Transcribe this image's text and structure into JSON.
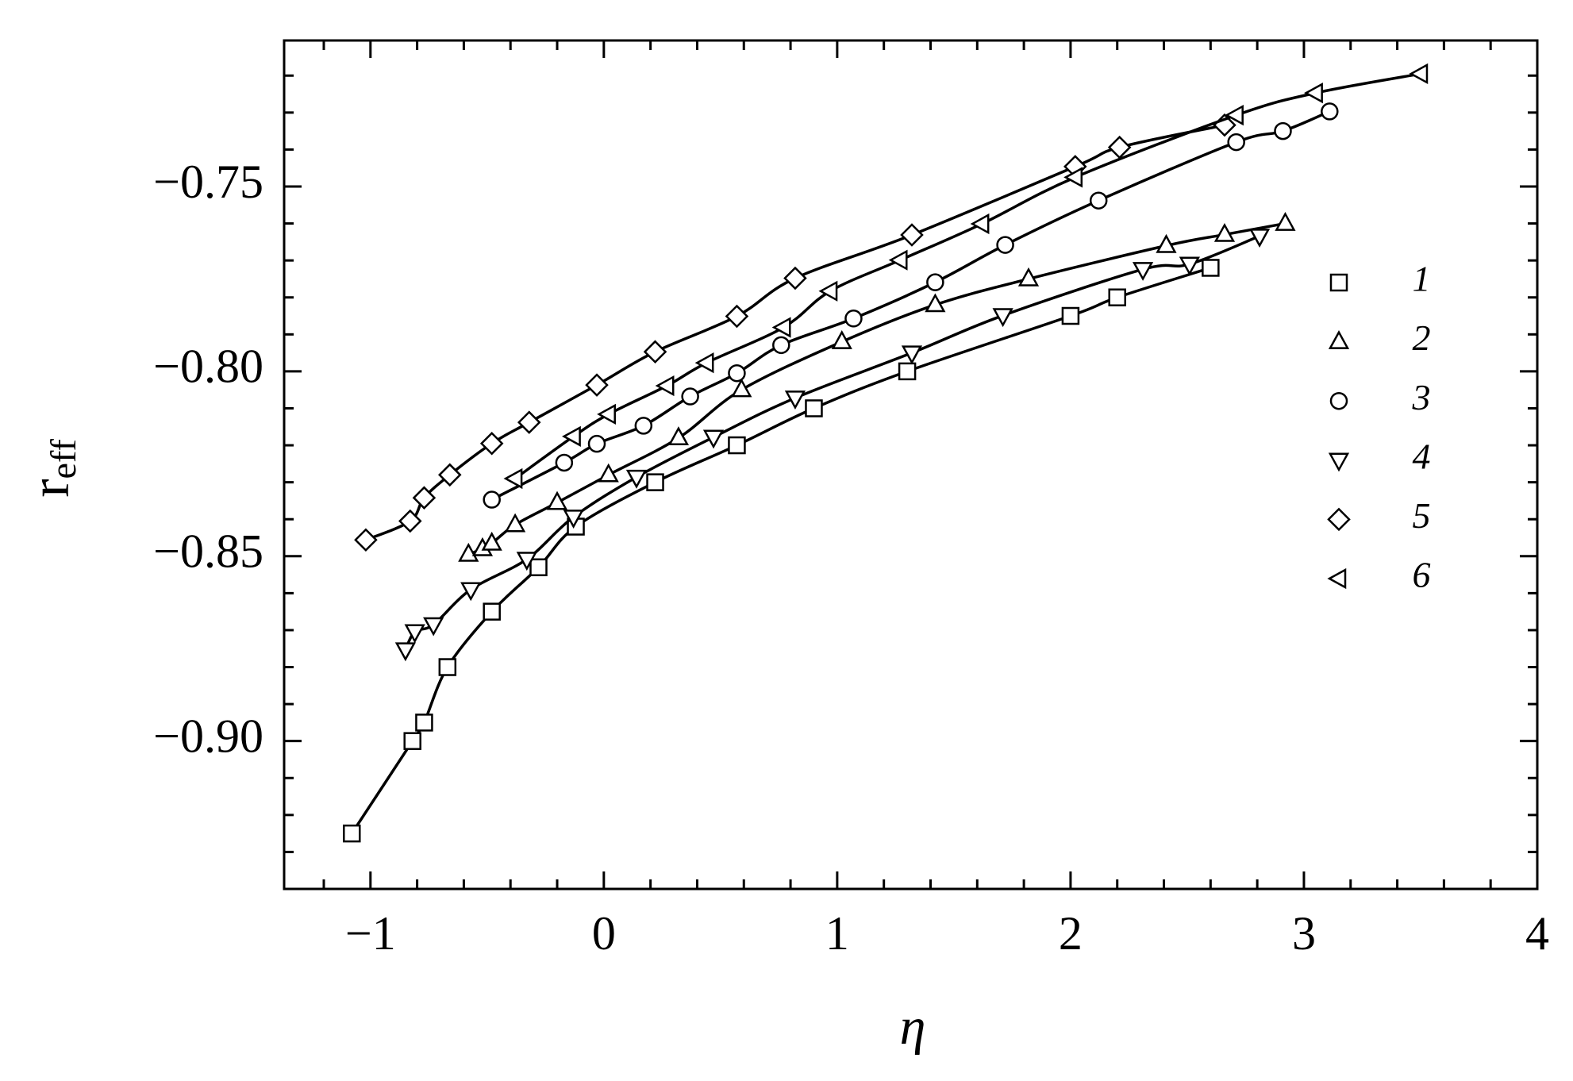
{
  "chart_data": {
    "type": "line",
    "xlabel": "η",
    "ylabel": "r",
    "ylabel_subscript": "eff",
    "xlim": [
      -1.37,
      4
    ],
    "ylim": [
      -0.94,
      -0.7105
    ],
    "xticks": [
      {
        "value": -1,
        "label": "−1"
      },
      0,
      1,
      2,
      3,
      4
    ],
    "yticks": [
      {
        "value": -0.9,
        "label": "−0.90"
      },
      {
        "value": -0.85,
        "label": "−0.85"
      },
      {
        "value": -0.8,
        "label": "−0.80"
      },
      {
        "value": -0.75,
        "label": "−0.75"
      }
    ],
    "xminor_ticks": [
      -1.2,
      -0.8,
      -0.6,
      -0.4,
      -0.2,
      0.2,
      0.4,
      0.6,
      0.8,
      1.2,
      1.4,
      1.6,
      1.8,
      2.2,
      2.4,
      2.6,
      2.8,
      3.2,
      3.4,
      3.6,
      3.8
    ],
    "yminor_ticks": [
      -0.93,
      -0.92,
      -0.91,
      -0.89,
      -0.88,
      -0.87,
      -0.86,
      -0.84,
      -0.83,
      -0.82,
      -0.81,
      -0.79,
      -0.78,
      -0.77,
      -0.76,
      -0.74,
      -0.73,
      -0.72
    ],
    "legend": "right",
    "color": "#000000",
    "series": [
      {
        "name": "1",
        "marker": "square",
        "x": [
          -1.08,
          -0.82,
          -0.77,
          -0.67,
          -0.48,
          -0.28,
          -0.12,
          0.22,
          0.57,
          0.9,
          1.3,
          2.0,
          2.2,
          2.6
        ],
        "values": [
          -0.925,
          -0.9,
          -0.895,
          -0.88,
          -0.865,
          -0.853,
          -0.842,
          -0.83,
          -0.82,
          -0.81,
          -0.8,
          -0.785,
          -0.78,
          -0.772
        ]
      },
      {
        "name": "2",
        "marker": "triangle-up",
        "x": [
          -0.58,
          -0.52,
          -0.48,
          -0.38,
          -0.2,
          0.02,
          0.32,
          0.59,
          1.02,
          1.42,
          1.82,
          2.41,
          2.66,
          2.92
        ],
        "values": [
          -0.8495,
          -0.848,
          -0.8465,
          -0.8415,
          -0.8355,
          -0.828,
          -0.818,
          -0.805,
          -0.792,
          -0.782,
          -0.775,
          -0.766,
          -0.763,
          -0.76
        ]
      },
      {
        "name": "3",
        "marker": "circle",
        "x": [
          -0.48,
          -0.17,
          -0.03,
          0.17,
          0.37,
          0.57,
          0.76,
          1.07,
          1.42,
          1.72,
          2.12,
          2.71,
          2.91,
          3.11
        ],
        "values": [
          -0.8347,
          -0.8247,
          -0.8196,
          -0.8147,
          -0.8068,
          -0.8005,
          -0.7929,
          -0.7857,
          -0.7759,
          -0.7658,
          -0.7538,
          -0.738,
          -0.735,
          -0.7297
        ]
      },
      {
        "name": "4",
        "marker": "triangle-down",
        "x": [
          -0.85,
          -0.81,
          -0.73,
          -0.57,
          -0.33,
          -0.13,
          0.14,
          0.47,
          0.82,
          1.32,
          1.71,
          2.31,
          2.51,
          2.81
        ],
        "values": [
          -0.8753,
          -0.8704,
          -0.8685,
          -0.859,
          -0.8508,
          -0.8394,
          -0.8286,
          -0.8178,
          -0.8072,
          -0.795,
          -0.7849,
          -0.7724,
          -0.771,
          -0.7634
        ]
      },
      {
        "name": "5",
        "marker": "diamond",
        "x": [
          -1.02,
          -0.83,
          -0.77,
          -0.66,
          -0.48,
          -0.32,
          -0.03,
          0.22,
          0.57,
          0.82,
          1.32,
          2.02,
          2.21,
          2.66
        ],
        "values": [
          -0.8456,
          -0.8405,
          -0.8342,
          -0.828,
          -0.8195,
          -0.8138,
          -0.8037,
          -0.7947,
          -0.7851,
          -0.7748,
          -0.7631,
          -0.7446,
          -0.7394,
          -0.7334
        ]
      },
      {
        "name": "6",
        "marker": "triangle-left",
        "x": [
          -0.38,
          -0.13,
          0.02,
          0.27,
          0.44,
          0.77,
          0.97,
          1.27,
          1.62,
          2.02,
          2.71,
          3.05,
          3.5
        ],
        "values": [
          -0.829,
          -0.8176,
          -0.8116,
          -0.8039,
          -0.7977,
          -0.7881,
          -0.7783,
          -0.7699,
          -0.7601,
          -0.7475,
          -0.7307,
          -0.7247,
          -0.7195
        ]
      }
    ]
  }
}
